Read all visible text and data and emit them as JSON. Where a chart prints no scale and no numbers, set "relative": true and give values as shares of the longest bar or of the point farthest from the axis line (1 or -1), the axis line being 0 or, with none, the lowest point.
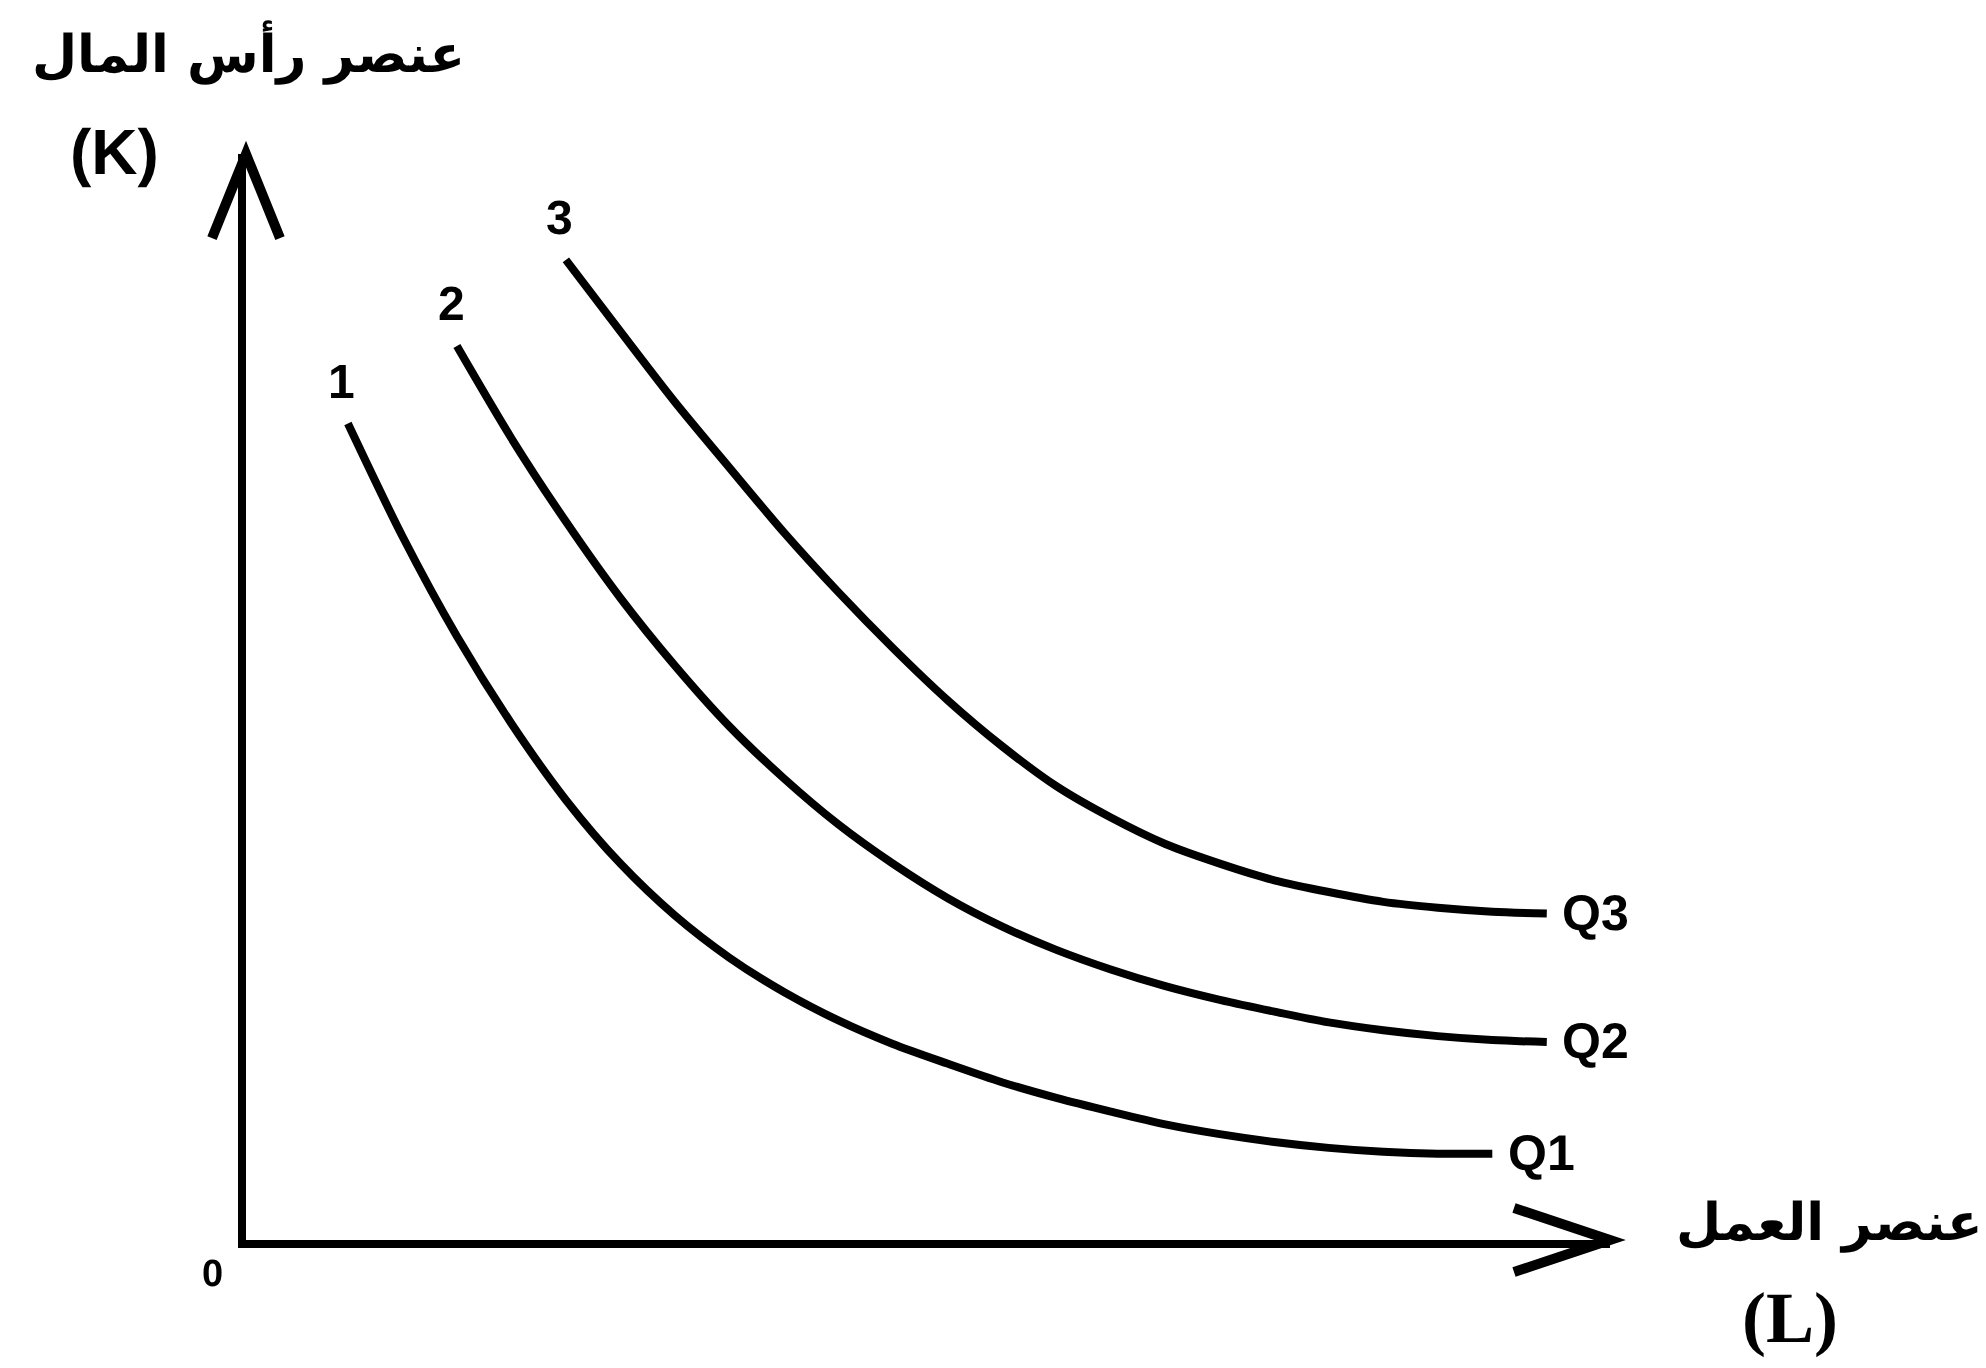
{
  "chart_data": {
    "type": "line",
    "relative": true,
    "xlabel": "عنصر العمل\n(L)",
    "ylabel": "عنصر رأس المال\n(K)",
    "categories": [
      null,
      null,
      null,
      null,
      null,
      null,
      null,
      null,
      null,
      null,
      null,
      null,
      null,
      null,
      null,
      null,
      null,
      null,
      null,
      null,
      null,
      null,
      null
    ],
    "series": [
      {
        "name": "Q1",
        "color": "#000000",
        "values": [
          0.833,
          0.718,
          0.616,
          0.527,
          0.449,
          0.384,
          0.331,
          0.288,
          0.253,
          0.224,
          0.2,
          0.18,
          0.161,
          0.145,
          0.131,
          0.118,
          0.108,
          0.1,
          0.094,
          0.09,
          0.088,
          0.088,
          null
        ]
      },
      {
        "name": "Q2",
        "color": "#000000",
        "values": [
          null,
          null,
          0.912,
          0.818,
          0.733,
          0.655,
          0.586,
          0.524,
          0.471,
          0.424,
          0.384,
          0.349,
          0.32,
          0.296,
          0.276,
          0.259,
          0.245,
          0.233,
          0.222,
          0.214,
          0.208,
          0.204,
          0.202
        ]
      },
      {
        "name": "Q3",
        "color": "#000000",
        "values": [
          null,
          null,
          null,
          null,
          1.0,
          0.927,
          0.855,
          0.788,
          0.722,
          0.661,
          0.604,
          0.551,
          0.504,
          0.463,
          0.431,
          0.404,
          0.384,
          0.367,
          0.355,
          0.345,
          0.339,
          0.335,
          0.333
        ]
      }
    ],
    "annotations": [
      {
        "text": "1",
        "y": 0.833
      },
      {
        "text": "2",
        "y": 0.912
      },
      {
        "text": "3",
        "y": 1.0
      },
      "0"
    ]
  }
}
